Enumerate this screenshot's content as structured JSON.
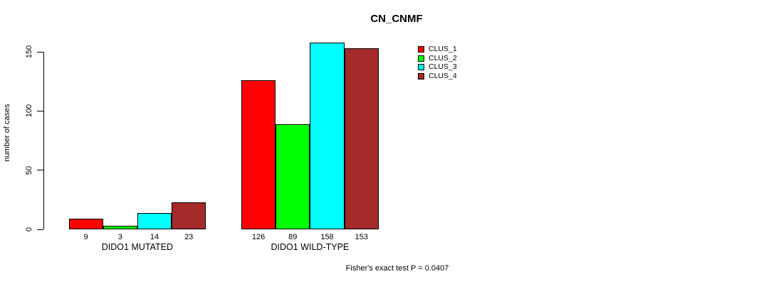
{
  "chart_data": {
    "type": "bar",
    "title": "CN_CNMF",
    "ylabel": "number of cases",
    "xlabel": "",
    "yticks": [
      0,
      50,
      100,
      150
    ],
    "ylim": [
      0,
      165
    ],
    "grid": false,
    "legend_position": "right",
    "categories": [
      "DIDO1 MUTATED",
      "DIDO1 WILD-TYPE"
    ],
    "series": [
      {
        "name": "CLUS_1",
        "color": "#FF0000",
        "values": [
          9,
          126
        ]
      },
      {
        "name": "CLUS_2",
        "color": "#00FF00",
        "values": [
          3,
          89
        ]
      },
      {
        "name": "CLUS_3",
        "color": "#00FFFF",
        "values": [
          14,
          158
        ]
      },
      {
        "name": "CLUS_4",
        "color": "#A52A2A",
        "values": [
          23,
          153
        ]
      }
    ],
    "bar_value_labels": [
      [
        "9",
        "3",
        "14",
        "23"
      ],
      [
        "126",
        "89",
        "158",
        "153"
      ]
    ],
    "annotation": "Fisher's exact test P = 0.0407"
  }
}
